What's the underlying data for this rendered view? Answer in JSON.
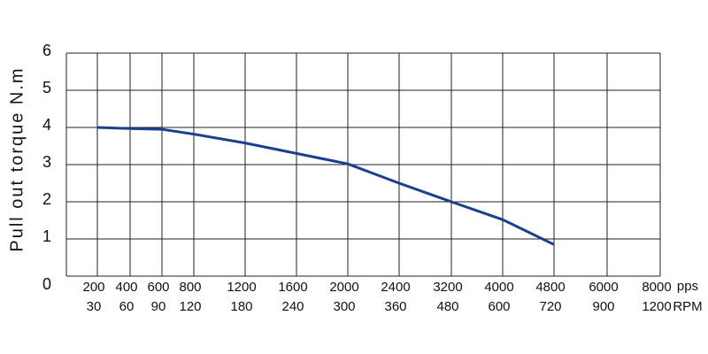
{
  "chart_data": {
    "type": "line",
    "y_label": "Pull out torque N.m",
    "categories": [
      "200",
      "400",
      "600",
      "800",
      "1200",
      "1600",
      "2000",
      "2400",
      "3200",
      "4000",
      "4800",
      "6000",
      "8000"
    ],
    "x_unit": "pps",
    "categories2": [
      "30",
      "60",
      "90",
      "120",
      "180",
      "240",
      "300",
      "360",
      "480",
      "600",
      "720",
      "900",
      "1200"
    ],
    "x2_unit": "RPM",
    "series": [
      {
        "color": "#1a3f8f",
        "values": [
          4.0,
          3.97,
          3.95,
          3.82,
          3.58,
          3.3,
          3.02,
          2.5,
          2.0,
          1.52,
          0.85,
          null,
          null
        ]
      }
    ],
    "ylim": [
      0,
      6
    ],
    "yticks": [
      0,
      1,
      2,
      3,
      4,
      5,
      6
    ],
    "grid": true
  }
}
